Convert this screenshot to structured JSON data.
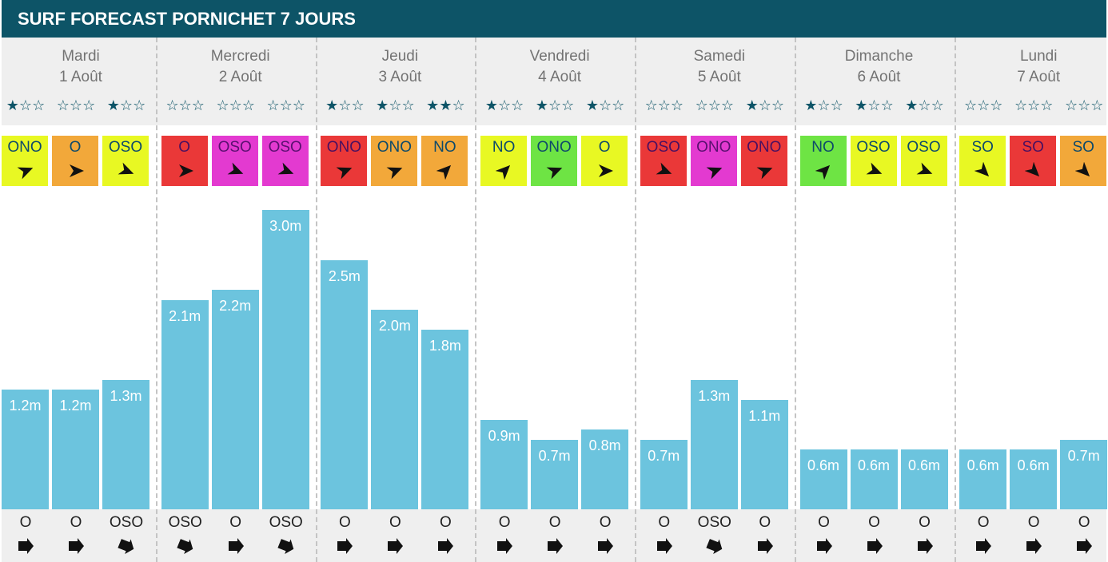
{
  "title": "SURF FORECAST PORNICHET 7 JOURS",
  "colors": {
    "header": "#0d5467",
    "bar": "#6cc4de",
    "wind_yellow": "#e8f823",
    "wind_orange": "#f2a83a",
    "wind_red": "#ea3838",
    "wind_magenta": "#e33ad0",
    "wind_green": "#6ee444"
  },
  "chart_data": {
    "type": "bar",
    "title": "SURF FORECAST PORNICHET 7 JOURS",
    "unit": "m",
    "ylim": [
      0,
      3.0
    ],
    "days": [
      {
        "name": "Mardi",
        "date": "1 Août",
        "slots": [
          {
            "stars": 1,
            "wind_dir": "ONO",
            "wind_color": "yellow",
            "wave": 1.2,
            "wave_label": "1.2m",
            "swell_dir": "O"
          },
          {
            "stars": 0,
            "wind_dir": "O",
            "wind_color": "orange",
            "wave": 1.2,
            "wave_label": "1.2m",
            "swell_dir": "O"
          },
          {
            "stars": 1,
            "wind_dir": "OSO",
            "wind_color": "yellow",
            "wave": 1.3,
            "wave_label": "1.3m",
            "swell_dir": "OSO"
          }
        ]
      },
      {
        "name": "Mercredi",
        "date": "2 Août",
        "slots": [
          {
            "stars": 0,
            "wind_dir": "O",
            "wind_color": "red",
            "wave": 2.1,
            "wave_label": "2.1m",
            "swell_dir": "OSO"
          },
          {
            "stars": 0,
            "wind_dir": "OSO",
            "wind_color": "magenta",
            "wave": 2.2,
            "wave_label": "2.2m",
            "swell_dir": "O"
          },
          {
            "stars": 0,
            "wind_dir": "OSO",
            "wind_color": "magenta",
            "wave": 3.0,
            "wave_label": "3.0m",
            "swell_dir": "OSO"
          }
        ]
      },
      {
        "name": "Jeudi",
        "date": "3 Août",
        "slots": [
          {
            "stars": 1,
            "wind_dir": "ONO",
            "wind_color": "red",
            "wave": 2.5,
            "wave_label": "2.5m",
            "swell_dir": "O"
          },
          {
            "stars": 1,
            "wind_dir": "ONO",
            "wind_color": "orange",
            "wave": 2.0,
            "wave_label": "2.0m",
            "swell_dir": "O"
          },
          {
            "stars": 2,
            "wind_dir": "NO",
            "wind_color": "orange",
            "wave": 1.8,
            "wave_label": "1.8m",
            "swell_dir": "O"
          }
        ]
      },
      {
        "name": "Vendredi",
        "date": "4 Août",
        "slots": [
          {
            "stars": 1,
            "wind_dir": "NO",
            "wind_color": "yellow",
            "wave": 0.9,
            "wave_label": "0.9m",
            "swell_dir": "O"
          },
          {
            "stars": 1,
            "wind_dir": "ONO",
            "wind_color": "green",
            "wave": 0.7,
            "wave_label": "0.7m",
            "swell_dir": "O"
          },
          {
            "stars": 1,
            "wind_dir": "O",
            "wind_color": "yellow",
            "wave": 0.8,
            "wave_label": "0.8m",
            "swell_dir": "O"
          }
        ]
      },
      {
        "name": "Samedi",
        "date": "5 Août",
        "slots": [
          {
            "stars": 0,
            "wind_dir": "OSO",
            "wind_color": "red",
            "wave": 0.7,
            "wave_label": "0.7m",
            "swell_dir": "O"
          },
          {
            "stars": 0,
            "wind_dir": "ONO",
            "wind_color": "magenta",
            "wave": 1.3,
            "wave_label": "1.3m",
            "swell_dir": "OSO"
          },
          {
            "stars": 1,
            "wind_dir": "ONO",
            "wind_color": "red",
            "wave": 1.1,
            "wave_label": "1.1m",
            "swell_dir": "O"
          }
        ]
      },
      {
        "name": "Dimanche",
        "date": "6 Août",
        "slots": [
          {
            "stars": 1,
            "wind_dir": "NO",
            "wind_color": "green",
            "wave": 0.6,
            "wave_label": "0.6m",
            "swell_dir": "O"
          },
          {
            "stars": 1,
            "wind_dir": "OSO",
            "wind_color": "yellow",
            "wave": 0.6,
            "wave_label": "0.6m",
            "swell_dir": "O"
          },
          {
            "stars": 1,
            "wind_dir": "OSO",
            "wind_color": "yellow",
            "wave": 0.6,
            "wave_label": "0.6m",
            "swell_dir": "O"
          }
        ]
      },
      {
        "name": "Lundi",
        "date": "7 Août",
        "slots": [
          {
            "stars": 0,
            "wind_dir": "SO",
            "wind_color": "yellow",
            "wave": 0.6,
            "wave_label": "0.6m",
            "swell_dir": "O"
          },
          {
            "stars": 0,
            "wind_dir": "SO",
            "wind_color": "red",
            "wave": 0.6,
            "wave_label": "0.6m",
            "swell_dir": "O"
          },
          {
            "stars": 0,
            "wind_dir": "SO",
            "wind_color": "orange",
            "wave": 0.7,
            "wave_label": "0.7m",
            "swell_dir": "O"
          }
        ]
      }
    ]
  }
}
